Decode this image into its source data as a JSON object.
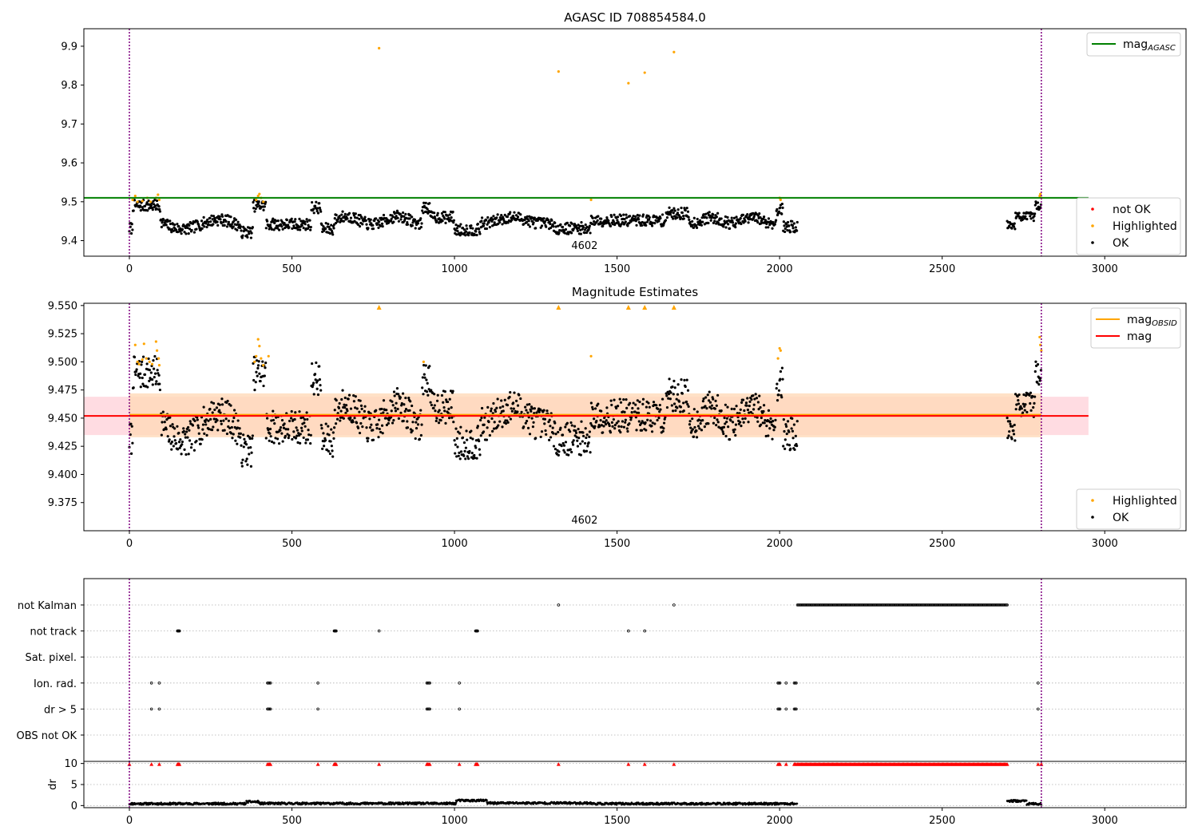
{
  "chart_data": [
    {
      "type": "scatter",
      "title": "AGASC ID 708854584.0",
      "xlim": [
        -140,
        3250
      ],
      "ylim": [
        9.36,
        9.945
      ],
      "xticks": [
        0,
        500,
        1000,
        1500,
        2000,
        2500,
        3000
      ],
      "yticks": [
        9.4,
        9.5,
        9.6,
        9.7,
        9.8,
        9.9
      ],
      "ytick_decimals": 1,
      "obsid_label": "4602",
      "obsid_label_x": 1400,
      "obs_boundaries": [
        0,
        2805
      ],
      "colors": {
        "ok": "#000000",
        "highlighted": "#ffa500",
        "not_ok": "#ff0000",
        "mag_agasc": "#008000",
        "boundary": "#800080"
      },
      "mag_agasc": {
        "value": 9.51,
        "x_range": [
          -140,
          2950
        ]
      },
      "highlighted_points": [
        [
          10,
          9.505
        ],
        [
          18,
          9.515
        ],
        [
          25,
          9.5
        ],
        [
          40,
          9.502
        ],
        [
          55,
          9.51
        ],
        [
          65,
          9.5
        ],
        [
          82,
          9.51
        ],
        [
          88,
          9.518
        ],
        [
          92,
          9.505
        ],
        [
          390,
          9.505
        ],
        [
          396,
          9.515
        ],
        [
          400,
          9.52
        ],
        [
          405,
          9.51
        ],
        [
          412,
          9.5
        ],
        [
          768,
          9.895
        ],
        [
          1320,
          9.835
        ],
        [
          1420,
          9.505
        ],
        [
          1535,
          9.805
        ],
        [
          1585,
          9.832
        ],
        [
          1675,
          9.885
        ],
        [
          2000,
          9.51
        ],
        [
          2003,
          9.505
        ],
        [
          2800,
          9.515
        ],
        [
          2802,
          9.52
        ],
        [
          2805,
          9.51
        ]
      ],
      "legends": [
        {
          "entries": [
            {
              "label": "mag",
              "subscript": "AGASC",
              "kind": "line",
              "color": "#008000"
            }
          ]
        },
        {
          "entries": [
            {
              "label": "not OK",
              "kind": "dot",
              "color": "#ff0000"
            },
            {
              "label": "Highlighted",
              "kind": "dot",
              "color": "#ffa500"
            },
            {
              "label": "OK",
              "kind": "dot",
              "color": "#000000"
            }
          ]
        }
      ]
    },
    {
      "type": "scatter",
      "title": "Magnitude Estimates",
      "xlim": [
        -140,
        3250
      ],
      "ylim": [
        9.35,
        9.552
      ],
      "xticks": [
        0,
        500,
        1000,
        1500,
        2000,
        2500,
        3000
      ],
      "yticks": [
        9.375,
        9.4,
        9.425,
        9.45,
        9.475,
        9.5,
        9.525,
        9.55
      ],
      "ytick_decimals": 3,
      "obsid_label": "4602",
      "obsid_label_x": 1400,
      "obs_boundaries": [
        0,
        2805
      ],
      "colors": {
        "ok": "#000000",
        "highlighted": "#ffa500",
        "mag": "#ff0000",
        "mag_obsid": "#ffa500",
        "band_mag": "#ffc0cb",
        "band_obsid": "#ffdab9",
        "boundary": "#800080"
      },
      "mag": {
        "value": 9.452,
        "band": [
          9.435,
          9.469
        ],
        "x_range": [
          -140,
          2950
        ]
      },
      "mag_obsid": {
        "value": 9.453,
        "band": [
          9.433,
          9.472
        ],
        "x_range": [
          0,
          2805
        ]
      },
      "highlighted_points": [
        [
          18,
          9.515
        ],
        [
          25,
          9.5
        ],
        [
          30,
          9.498
        ],
        [
          40,
          9.502
        ],
        [
          45,
          9.516
        ],
        [
          52,
          9.503
        ],
        [
          62,
          9.5
        ],
        [
          70,
          9.498
        ],
        [
          82,
          9.518
        ],
        [
          85,
          9.51
        ],
        [
          90,
          9.503
        ],
        [
          92,
          9.497
        ],
        [
          385,
          9.5
        ],
        [
          390,
          9.505
        ],
        [
          396,
          9.52
        ],
        [
          400,
          9.514
        ],
        [
          405,
          9.503
        ],
        [
          412,
          9.497
        ],
        [
          428,
          9.505
        ],
        [
          905,
          9.5
        ],
        [
          1420,
          9.505
        ],
        [
          1995,
          9.503
        ],
        [
          2000,
          9.512
        ],
        [
          2003,
          9.51
        ],
        [
          2800,
          9.522
        ],
        [
          2802,
          9.515
        ],
        [
          2805,
          9.51
        ]
      ],
      "clipped_markers": [
        768,
        1320,
        1535,
        1585,
        1675
      ],
      "legends": [
        {
          "entries": [
            {
              "label": "mag",
              "subscript": "OBSID",
              "kind": "line",
              "color": "#ffa500"
            },
            {
              "label": "mag",
              "kind": "line",
              "color": "#ff0000"
            }
          ]
        },
        {
          "entries": [
            {
              "label": "Highlighted",
              "kind": "dot",
              "color": "#ffa500"
            },
            {
              "label": "OK",
              "kind": "dot",
              "color": "#000000"
            }
          ]
        }
      ]
    },
    {
      "type": "scatter",
      "title": "",
      "xlim": [
        -140,
        3250
      ],
      "categories": [
        "not Kalman",
        "not track",
        "Sat. pixel.",
        "Ion. rad.",
        "dr > 5",
        "OBS not OK"
      ],
      "flags": {
        "not Kalman": {
          "points": [
            1320,
            1675
          ],
          "ranges": [
            [
              2055,
              2700
            ]
          ]
        },
        "not track": {
          "points": [
            148,
            150,
            152,
            154,
            630,
            632,
            634,
            636,
            768,
            1065,
            1067,
            1069,
            1071,
            1535,
            1585
          ]
        },
        "Sat. pixel.": {
          "points": []
        },
        "Ion. rad.": {
          "points": [
            68,
            92,
            425,
            428,
            431,
            434,
            580,
            915,
            918,
            921,
            924,
            1015,
            1995,
            1998,
            2001,
            2020,
            2045,
            2048,
            2051,
            2795
          ]
        },
        "dr > 5": {
          "points": [
            68,
            92,
            425,
            428,
            431,
            434,
            580,
            915,
            918,
            921,
            924,
            1015,
            1995,
            1998,
            2001,
            2020,
            2045,
            2048,
            2051,
            2795
          ]
        },
        "OBS not OK": {
          "points": []
        }
      },
      "obs_boundaries": [
        0,
        2805
      ],
      "colors": {
        "flag": "#000000",
        "boundary": "#800080"
      }
    },
    {
      "type": "scatter",
      "title": "",
      "ylabel": "dr",
      "xlim": [
        -140,
        3250
      ],
      "ylim": [
        -0.5,
        10.5
      ],
      "xticks": [
        0,
        500,
        1000,
        1500,
        2000,
        2500,
        3000
      ],
      "yticks": [
        0,
        5,
        10
      ],
      "ytick_decimals": 0,
      "dr_segments": [
        {
          "x": [
            0,
            360
          ],
          "level": 0.45
        },
        {
          "x": [
            360,
            400
          ],
          "level": 0.9
        },
        {
          "x": [
            400,
            1005
          ],
          "level": 0.5
        },
        {
          "x": [
            1005,
            1100
          ],
          "level": 1.2
        },
        {
          "x": [
            1100,
            1420
          ],
          "level": 0.6
        },
        {
          "x": [
            1420,
            2055
          ],
          "level": 0.45
        },
        {
          "x": [
            2700,
            2760
          ],
          "level": 1.1
        },
        {
          "x": [
            2760,
            2805
          ],
          "level": 0.4
        }
      ],
      "clipped_markers": [
        0,
        68,
        92,
        148,
        150,
        152,
        154,
        425,
        428,
        431,
        434,
        580,
        630,
        632,
        634,
        636,
        768,
        915,
        918,
        921,
        924,
        1015,
        1065,
        1067,
        1069,
        1071,
        1320,
        1535,
        1585,
        1675,
        1995,
        1998,
        2001,
        2020,
        2045,
        2048,
        2051,
        2795,
        2805
      ],
      "clipped_ranges": [
        [
          2055,
          2700
        ]
      ],
      "obs_boundaries": [
        0,
        2805
      ],
      "colors": {
        "ok": "#000000",
        "clipped": "#ff0000",
        "boundary": "#800080"
      }
    }
  ]
}
